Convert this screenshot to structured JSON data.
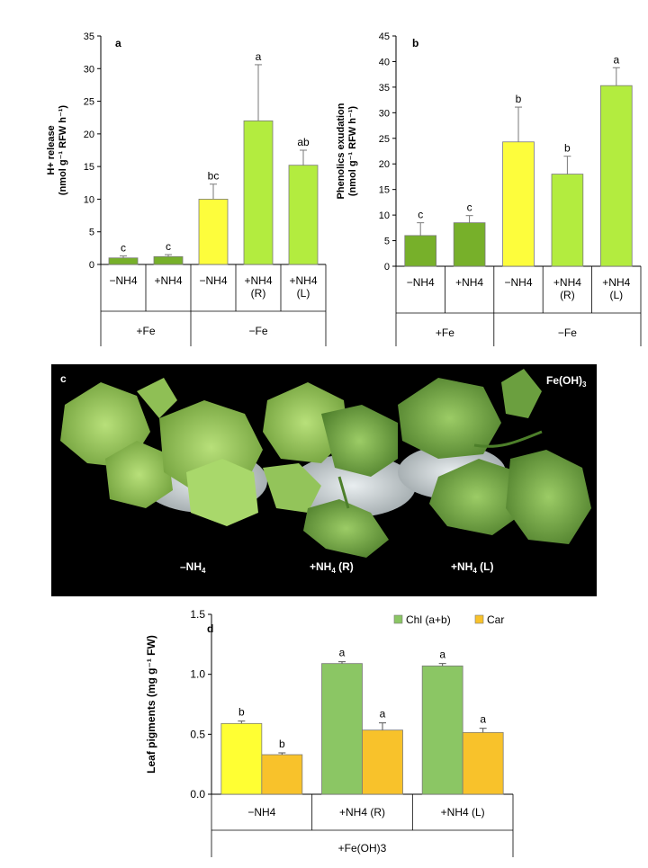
{
  "chart_data": [
    {
      "panel": "a",
      "type": "bar",
      "ylabel_line1": "H+ release",
      "ylabel_line2": "(nmol g⁻¹ RFW h⁻¹)",
      "ylim": [
        0,
        35
      ],
      "yticks": [
        "0",
        "5",
        "10",
        "15",
        "20",
        "25",
        "30",
        "35"
      ],
      "categories": [
        "−NH4",
        "+NH4",
        "−NH4",
        "+NH4\n(R)",
        "+NH4\n(L)"
      ],
      "values": [
        1.0,
        1.2,
        10.0,
        22.0,
        15.2
      ],
      "errors": [
        0.3,
        0.3,
        2.3,
        8.6,
        2.3
      ],
      "letters": [
        "c",
        "c",
        "bc",
        "a",
        "ab"
      ],
      "colors": [
        "#77b02a",
        "#77b02a",
        "#fdfd3c",
        "#b3ec3f",
        "#b3ec3f"
      ],
      "groups": [
        {
          "label": "+Fe",
          "count": 2
        },
        {
          "label": "−Fe",
          "count": 3
        }
      ]
    },
    {
      "panel": "b",
      "type": "bar",
      "ylabel_line1": "Phenolics exudation",
      "ylabel_line2": "(nmol g⁻¹ RFW h⁻¹)",
      "ylim": [
        0,
        45
      ],
      "yticks": [
        "0",
        "5",
        "10",
        "15",
        "20",
        "25",
        "30",
        "35",
        "40",
        "45"
      ],
      "categories": [
        "−NH4",
        "+NH4",
        "−NH4",
        "+NH4\n(R)",
        "+NH4\n(L)"
      ],
      "values": [
        6.0,
        8.5,
        24.3,
        18.0,
        35.3
      ],
      "errors": [
        2.5,
        1.4,
        6.8,
        3.5,
        3.5
      ],
      "letters": [
        "c",
        "c",
        "b",
        "b",
        "a"
      ],
      "colors": [
        "#77b02a",
        "#77b02a",
        "#fdfd3c",
        "#b3ec3f",
        "#b3ec3f"
      ],
      "groups": [
        {
          "label": "+Fe",
          "count": 2
        },
        {
          "label": "−Fe",
          "count": 3
        }
      ]
    },
    {
      "panel": "d",
      "type": "bar",
      "ylabel": "Leaf pigments (mg g⁻¹ FW)",
      "ylim": [
        0,
        1.5
      ],
      "yticks": [
        "0.0",
        "0.5",
        "1.0",
        "1.5"
      ],
      "categories": [
        "−NH4",
        "+NH4 (R)",
        "+NH4 (L)"
      ],
      "group_label": "+Fe(OH)3",
      "series": [
        {
          "name": "Chl (a+b)",
          "color": "#8bc664",
          "values": [
            0.59,
            1.09,
            1.07
          ],
          "errors": [
            0.02,
            0.015,
            0.02
          ],
          "letters": [
            "b",
            "a",
            "a"
          ]
        },
        {
          "name": "Car",
          "color": "#f8c22b",
          "values": [
            0.33,
            0.535,
            0.515
          ],
          "errors": [
            0.015,
            0.06,
            0.035
          ],
          "letters": [
            "b",
            "a",
            "a"
          ]
        }
      ],
      "first_bar_color": "#ffff33"
    }
  ],
  "panel_letters": {
    "a": "a",
    "b": "b",
    "c": "c",
    "d": "d"
  },
  "photo": {
    "title": "Fe(OH)",
    "title_sub": "3",
    "labels": [
      {
        "main": "–NH",
        "sub": "4",
        "tail": ""
      },
      {
        "main": "+NH",
        "sub": "4",
        "tail": " (R)"
      },
      {
        "main": "+NH",
        "sub": "4",
        "tail": " (L)"
      }
    ]
  }
}
